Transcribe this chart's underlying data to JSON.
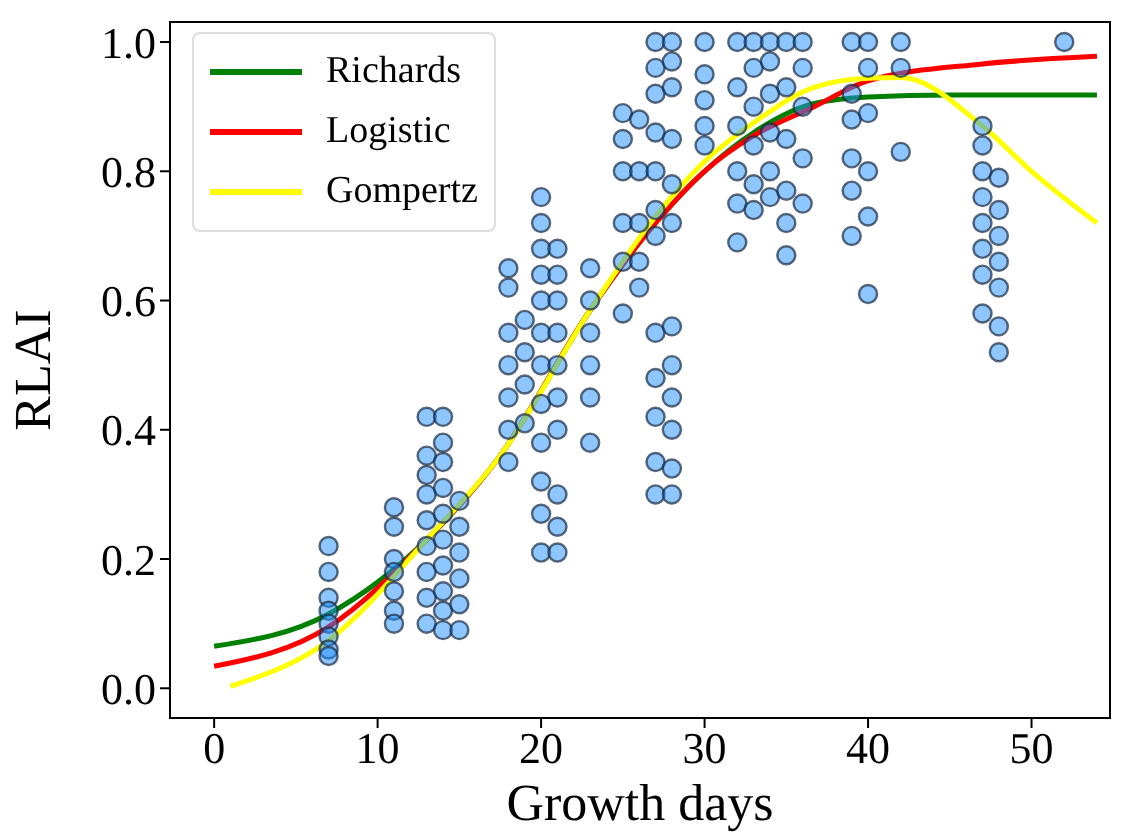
{
  "chart_data": {
    "type": "scatter",
    "xlabel": "Growth days",
    "ylabel": "RLAI",
    "xlim": [
      -2.7,
      54.8
    ],
    "ylim": [
      -0.046,
      1.031
    ],
    "xticks": [
      0,
      10,
      20,
      30,
      40,
      50
    ],
    "yticks": [
      {
        "value": 0,
        "label": "0.0"
      },
      {
        "value": 0.2,
        "label": "0.2"
      },
      {
        "value": 0.4,
        "label": "0.4"
      },
      {
        "value": 0.6,
        "label": "0.6"
      },
      {
        "value": 0.8,
        "label": "0.8"
      },
      {
        "value": 1,
        "label": "1.0"
      }
    ],
    "legend": "top left",
    "series": [
      {
        "color": "#1e90ff",
        "marker": "circle",
        "x": [
          7,
          7,
          7,
          7,
          7,
          7,
          7,
          7,
          11,
          11,
          11,
          11,
          11,
          11,
          11,
          13,
          13,
          13,
          13,
          13,
          13,
          13,
          13,
          13,
          14,
          14,
          14,
          14,
          14,
          14,
          14,
          14,
          14,
          14,
          15,
          15,
          15,
          15,
          15,
          15,
          18,
          18,
          18,
          18,
          18,
          18,
          18,
          19,
          19,
          19,
          19,
          20,
          20,
          20,
          20,
          20,
          20,
          20,
          20,
          20,
          20,
          20,
          20,
          21,
          21,
          21,
          21,
          21,
          21,
          21,
          21,
          21,
          21,
          23,
          23,
          23,
          23,
          23,
          23,
          25,
          25,
          25,
          25,
          25,
          25,
          26,
          26,
          26,
          26,
          26,
          27,
          27,
          27,
          27,
          27,
          27,
          27,
          27,
          27,
          27,
          27,
          27,
          28,
          28,
          28,
          28,
          28,
          28,
          28,
          28,
          28,
          28,
          28,
          28,
          30,
          30,
          30,
          30,
          30,
          32,
          32,
          32,
          32,
          32,
          32,
          33,
          33,
          33,
          33,
          33,
          33,
          34,
          34,
          34,
          34,
          34,
          34,
          35,
          35,
          35,
          35,
          35,
          35,
          36,
          36,
          36,
          36,
          36,
          39,
          39,
          39,
          39,
          39,
          39,
          40,
          40,
          40,
          40,
          40,
          40,
          42,
          42,
          42,
          47,
          47,
          47,
          47,
          47,
          47,
          47,
          47,
          48,
          48,
          48,
          48,
          48,
          48,
          48,
          52
        ],
        "values": [
          0.22,
          0.18,
          0.14,
          0.12,
          0.1,
          0.08,
          0.06,
          0.05,
          0.28,
          0.25,
          0.2,
          0.18,
          0.15,
          0.12,
          0.1,
          0.42,
          0.36,
          0.33,
          0.3,
          0.26,
          0.22,
          0.18,
          0.14,
          0.1,
          0.42,
          0.38,
          0.35,
          0.31,
          0.27,
          0.23,
          0.19,
          0.15,
          0.12,
          0.09,
          0.29,
          0.25,
          0.21,
          0.17,
          0.13,
          0.09,
          0.65,
          0.62,
          0.55,
          0.5,
          0.45,
          0.4,
          0.35,
          0.57,
          0.52,
          0.47,
          0.41,
          0.76,
          0.72,
          0.68,
          0.64,
          0.6,
          0.55,
          0.5,
          0.44,
          0.38,
          0.32,
          0.27,
          0.21,
          0.68,
          0.64,
          0.6,
          0.55,
          0.5,
          0.45,
          0.4,
          0.3,
          0.25,
          0.21,
          0.65,
          0.6,
          0.55,
          0.5,
          0.45,
          0.38,
          0.89,
          0.85,
          0.8,
          0.72,
          0.66,
          0.58,
          0.88,
          0.8,
          0.72,
          0.66,
          0.62,
          1.0,
          0.96,
          0.92,
          0.86,
          0.8,
          0.74,
          0.7,
          0.55,
          0.48,
          0.42,
          0.35,
          0.3,
          1.0,
          0.97,
          0.93,
          0.85,
          0.78,
          0.72,
          0.56,
          0.5,
          0.45,
          0.4,
          0.34,
          0.3,
          1.0,
          0.95,
          0.91,
          0.87,
          0.84,
          1.0,
          0.93,
          0.87,
          0.8,
          0.75,
          0.69,
          1.0,
          0.96,
          0.9,
          0.84,
          0.78,
          0.74,
          1.0,
          0.97,
          0.92,
          0.86,
          0.8,
          0.76,
          1.0,
          0.93,
          0.85,
          0.77,
          0.72,
          0.67,
          1.0,
          0.96,
          0.9,
          0.82,
          0.75,
          1.0,
          0.92,
          0.88,
          0.82,
          0.77,
          0.7,
          1.0,
          0.96,
          0.89,
          0.8,
          0.73,
          0.61,
          1.0,
          0.96,
          0.83,
          0.87,
          0.84,
          0.8,
          0.76,
          0.72,
          0.68,
          0.64,
          0.58,
          0.79,
          0.74,
          0.7,
          0.66,
          0.62,
          0.56,
          0.52,
          1.0
        ]
      },
      {
        "type": "line",
        "name": "Richards",
        "color": "#008000",
        "marker": "none",
        "line_style": "solid",
        "x": [
          0,
          7,
          13,
          17.5,
          23,
          27,
          30,
          33,
          36.7,
          40,
          45,
          54
        ],
        "values": [
          0.065,
          0.115,
          0.23,
          0.36,
          0.585,
          0.72,
          0.8,
          0.86,
          0.905,
          0.915,
          0.918,
          0.918
        ]
      },
      {
        "type": "line",
        "name": "Logistic",
        "color": "#ff0000",
        "marker": "none",
        "line_style": "solid",
        "x": [
          0,
          7,
          13,
          17.5,
          23,
          27,
          30,
          33,
          36.7,
          40,
          47,
          54
        ],
        "values": [
          0.034,
          0.095,
          0.23,
          0.36,
          0.585,
          0.72,
          0.8,
          0.855,
          0.9,
          0.94,
          0.966,
          0.978
        ]
      },
      {
        "type": "line",
        "name": "Gompertz",
        "color": "#ffff00",
        "marker": "none",
        "line_style": "solid",
        "x": [
          1,
          7,
          13,
          17.5,
          23,
          27,
          30,
          33,
          36.7,
          40,
          42,
          47,
          50,
          54
        ],
        "values": [
          0.003,
          0.074,
          0.23,
          0.36,
          0.585,
          0.73,
          0.815,
          0.875,
          0.93,
          0.944,
          0.945,
          0.87,
          0.8,
          0.72
        ]
      }
    ]
  }
}
